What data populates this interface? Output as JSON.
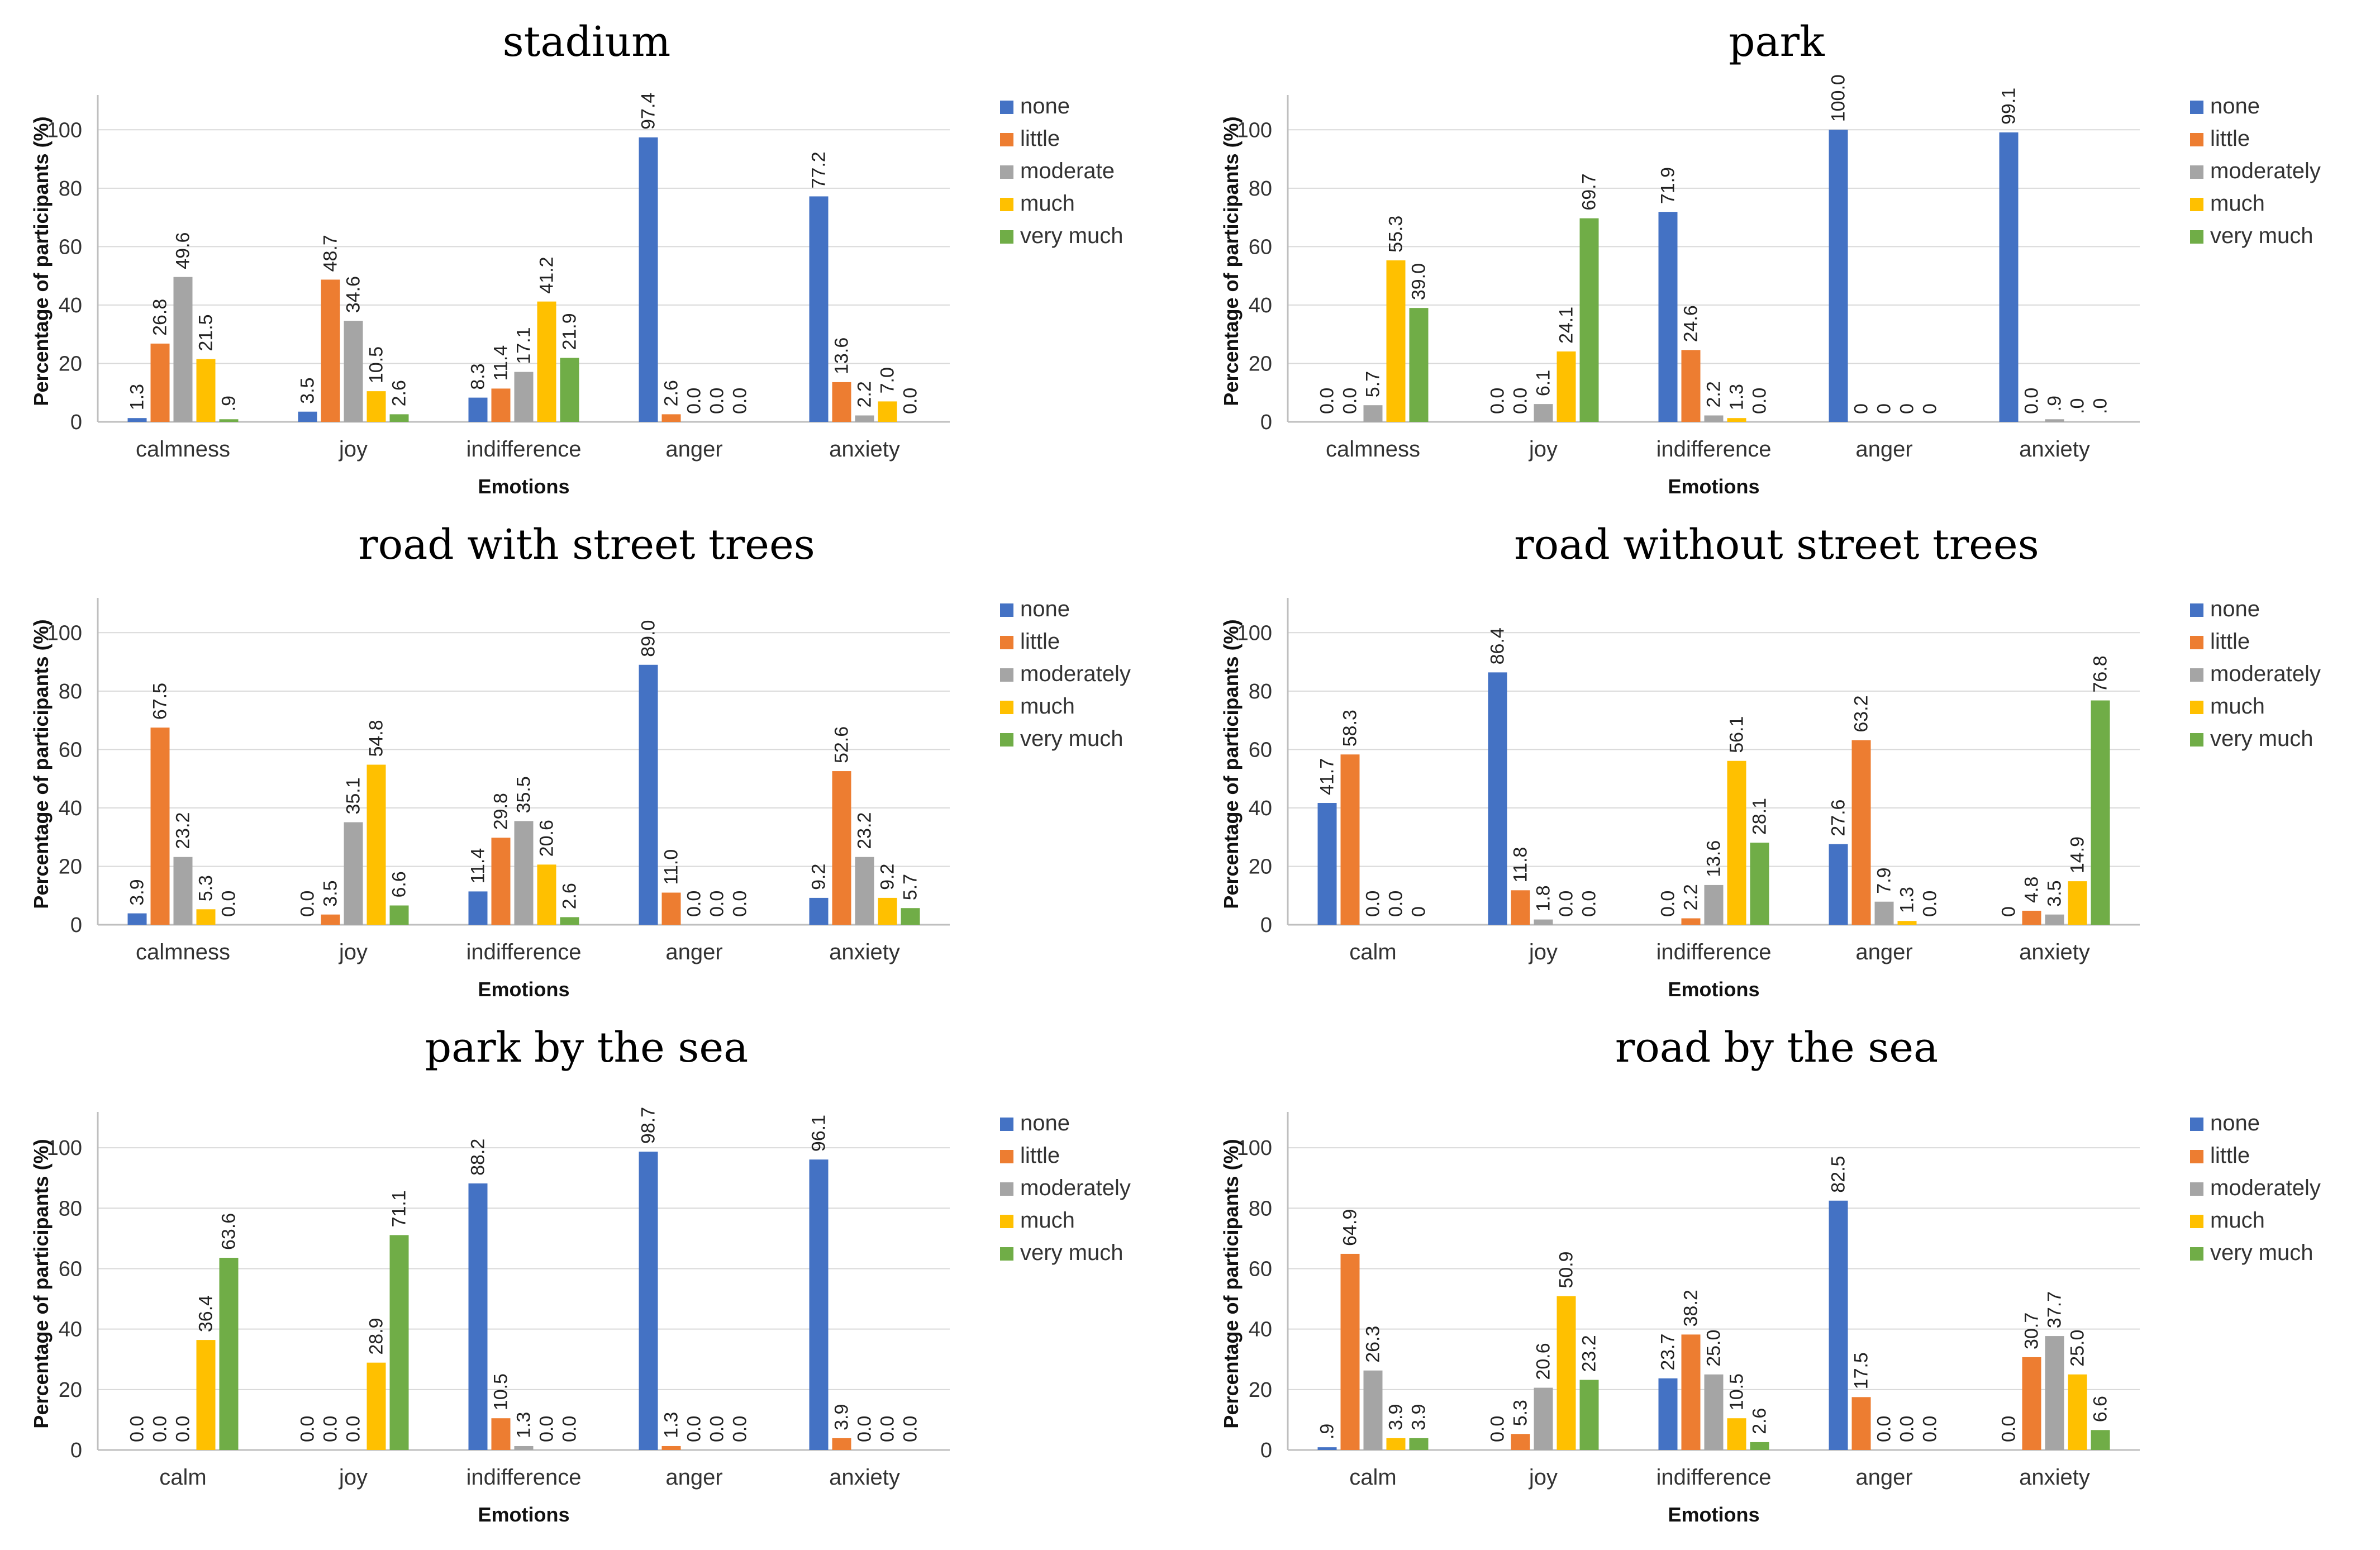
{
  "colors": {
    "none": "#4472c4",
    "little": "#ed7d31",
    "moderate": "#a5a5a5",
    "much": "#ffc000",
    "very much": "#70ad47"
  },
  "chart_data": [
    {
      "type": "bar",
      "title": "stadium",
      "xlabel": "Emotions",
      "ylabel": "Percentage of participants (%)",
      "ylim": [
        0,
        110
      ],
      "yticks": [
        "0",
        "20",
        "40",
        "60",
        "80",
        "100"
      ],
      "categories": [
        "calmness",
        "joy",
        "indifference",
        "anger",
        "anxiety"
      ],
      "series": [
        {
          "name": "none",
          "values": [
            1.3,
            3.5,
            8.3,
            97.4,
            77.2
          ],
          "labels": [
            "1.3",
            "3.5",
            "8.3",
            "97.4",
            "77.2"
          ]
        },
        {
          "name": "little",
          "values": [
            26.8,
            48.7,
            11.4,
            2.6,
            13.6
          ],
          "labels": [
            "26.8",
            "48.7",
            "11.4",
            "2.6",
            "13.6"
          ]
        },
        {
          "name": "moderate",
          "values": [
            49.6,
            34.6,
            17.1,
            0.0,
            2.2
          ],
          "labels": [
            "49.6",
            "34.6",
            "17.1",
            "0.0",
            "2.2"
          ]
        },
        {
          "name": "much",
          "values": [
            21.5,
            10.5,
            41.2,
            0.0,
            7.0
          ],
          "labels": [
            "21.5",
            "10.5",
            "41.2",
            "0.0",
            "7.0"
          ]
        },
        {
          "name": "very much",
          "values": [
            0.9,
            2.6,
            21.9,
            0.0,
            0.0
          ],
          "labels": [
            ".9",
            "2.6",
            "21.9",
            "0.0",
            "0.0"
          ]
        }
      ]
    },
    {
      "type": "bar",
      "title": "park",
      "xlabel": "Emotions",
      "ylabel": "Percentage of participants (%)",
      "ylim": [
        0,
        110
      ],
      "yticks": [
        "0",
        "20",
        "40",
        "60",
        "80",
        "100"
      ],
      "categories": [
        "calmness",
        "joy",
        "indifference",
        "anger",
        "anxiety"
      ],
      "series": [
        {
          "name": "none",
          "values": [
            0.0,
            0.0,
            71.9,
            100.0,
            99.1
          ],
          "labels": [
            "0.0",
            "0.0",
            "71.9",
            "100.0",
            "99.1"
          ]
        },
        {
          "name": "little",
          "values": [
            0.0,
            0.0,
            24.6,
            0,
            0.0
          ],
          "labels": [
            "0.0",
            "0.0",
            "24.6",
            "0",
            "0.0"
          ]
        },
        {
          "name": "moderately",
          "values": [
            5.7,
            6.1,
            2.2,
            0,
            0.9
          ],
          "labels": [
            "5.7",
            "6.1",
            "2.2",
            "0",
            ".9"
          ]
        },
        {
          "name": "much",
          "values": [
            55.3,
            24.1,
            1.3,
            0,
            0.0
          ],
          "labels": [
            "55.3",
            "24.1",
            "1.3",
            "0",
            ".0"
          ]
        },
        {
          "name": "very much",
          "values": [
            39.0,
            69.7,
            0.0,
            0,
            0.0
          ],
          "labels": [
            "39.0",
            "69.7",
            "0.0",
            "0",
            ".0"
          ]
        }
      ]
    },
    {
      "type": "bar",
      "title": "road with street trees",
      "xlabel": "Emotions",
      "ylabel": "Percentage of participants (%)",
      "ylim": [
        0,
        110
      ],
      "yticks": [
        "0",
        "20",
        "40",
        "60",
        "80",
        "100"
      ],
      "categories": [
        "calmness",
        "joy",
        "indifference",
        "anger",
        "anxiety"
      ],
      "series": [
        {
          "name": "none",
          "values": [
            3.9,
            0.0,
            11.4,
            89.0,
            9.2
          ],
          "labels": [
            "3.9",
            "0.0",
            "11.4",
            "89.0",
            "9.2"
          ]
        },
        {
          "name": "little",
          "values": [
            67.5,
            3.5,
            29.8,
            11.0,
            52.6
          ],
          "labels": [
            "67.5",
            "3.5",
            "29.8",
            "11.0",
            "52.6"
          ]
        },
        {
          "name": "moderately",
          "values": [
            23.2,
            35.1,
            35.5,
            0.0,
            23.2
          ],
          "labels": [
            "23.2",
            "35.1",
            "35.5",
            "0.0",
            "23.2"
          ]
        },
        {
          "name": "much",
          "values": [
            5.3,
            54.8,
            20.6,
            0.0,
            9.2
          ],
          "labels": [
            "5.3",
            "54.8",
            "20.6",
            "0.0",
            "9.2"
          ]
        },
        {
          "name": "very much",
          "values": [
            0.0,
            6.6,
            2.6,
            0.0,
            5.7
          ],
          "labels": [
            "0.0",
            "6.6",
            "2.6",
            "0.0",
            "5.7"
          ]
        }
      ]
    },
    {
      "type": "bar",
      "title": "road without street trees",
      "xlabel": "Emotions",
      "ylabel": "Percentage of participants (%)",
      "ylim": [
        0,
        110
      ],
      "yticks": [
        "0",
        "20",
        "40",
        "60",
        "80",
        "100"
      ],
      "categories": [
        "calm",
        "joy",
        "indifference",
        "anger",
        "anxiety"
      ],
      "series": [
        {
          "name": "none",
          "values": [
            41.7,
            86.4,
            0.0,
            27.6,
            0
          ],
          "labels": [
            "41.7",
            "86.4",
            "0.0",
            "27.6",
            "0"
          ]
        },
        {
          "name": "little",
          "values": [
            58.3,
            11.8,
            2.2,
            63.2,
            4.8
          ],
          "labels": [
            "58.3",
            "11.8",
            "2.2",
            "63.2",
            "4.8"
          ]
        },
        {
          "name": "moderately",
          "values": [
            0.0,
            1.8,
            13.6,
            7.9,
            3.5
          ],
          "labels": [
            "0.0",
            "1.8",
            "13.6",
            "7.9",
            "3.5"
          ]
        },
        {
          "name": "much",
          "values": [
            0.0,
            0.0,
            56.1,
            1.3,
            14.9
          ],
          "labels": [
            "0.0",
            "0.0",
            "56.1",
            "1.3",
            "14.9"
          ]
        },
        {
          "name": "very much",
          "values": [
            0,
            0.0,
            28.1,
            0.0,
            76.8
          ],
          "labels": [
            "0",
            "0.0",
            "28.1",
            "0.0",
            "76.8"
          ]
        }
      ]
    },
    {
      "type": "bar",
      "title": "park by the sea",
      "xlabel": "Emotions",
      "ylabel": "Percentage of participants (%)",
      "ylim": [
        0,
        110
      ],
      "yticks": [
        "0",
        "20",
        "40",
        "60",
        "80",
        "100"
      ],
      "categories": [
        "calm",
        "joy",
        "indifference",
        "anger",
        "anxiety"
      ],
      "series": [
        {
          "name": "none",
          "values": [
            0.0,
            0.0,
            88.2,
            98.7,
            96.1
          ],
          "labels": [
            "0.0",
            "0.0",
            "88.2",
            "98.7",
            "96.1"
          ]
        },
        {
          "name": "little",
          "values": [
            0.0,
            0.0,
            10.5,
            1.3,
            3.9
          ],
          "labels": [
            "0.0",
            "0.0",
            "10.5",
            "1.3",
            "3.9"
          ]
        },
        {
          "name": "moderately",
          "values": [
            0.0,
            0.0,
            1.3,
            0.0,
            0.0
          ],
          "labels": [
            "0.0",
            "0.0",
            "1.3",
            "0.0",
            "0.0"
          ]
        },
        {
          "name": "much",
          "values": [
            36.4,
            28.9,
            0.0,
            0.0,
            0.0
          ],
          "labels": [
            "36.4",
            "28.9",
            "0.0",
            "0.0",
            "0.0"
          ]
        },
        {
          "name": "very much",
          "values": [
            63.6,
            71.1,
            0.0,
            0.0,
            0.0
          ],
          "labels": [
            "63.6",
            "71.1",
            "0.0",
            "0.0",
            "0.0"
          ]
        }
      ]
    },
    {
      "type": "bar",
      "title": "road by the sea",
      "xlabel": "Emotions",
      "ylabel": "Percentage of participants (%)",
      "ylim": [
        0,
        110
      ],
      "yticks": [
        "0",
        "20",
        "40",
        "60",
        "80",
        "100"
      ],
      "categories": [
        "calm",
        "joy",
        "indifference",
        "anger",
        "anxiety"
      ],
      "series": [
        {
          "name": "none",
          "values": [
            0.9,
            0.0,
            23.7,
            82.5,
            0.0
          ],
          "labels": [
            ".9",
            "0.0",
            "23.7",
            "82.5",
            "0.0"
          ]
        },
        {
          "name": "little",
          "values": [
            64.9,
            5.3,
            38.2,
            17.5,
            30.7
          ],
          "labels": [
            "64.9",
            "5.3",
            "38.2",
            "17.5",
            "30.7"
          ]
        },
        {
          "name": "moderately",
          "values": [
            26.3,
            20.6,
            25.0,
            0.0,
            37.7
          ],
          "labels": [
            "26.3",
            "20.6",
            "25.0",
            "0.0",
            "37.7"
          ]
        },
        {
          "name": "much",
          "values": [
            3.9,
            50.9,
            10.5,
            0.0,
            25.0
          ],
          "labels": [
            "3.9",
            "50.9",
            "10.5",
            "0.0",
            "25.0"
          ]
        },
        {
          "name": "very much",
          "values": [
            3.9,
            23.2,
            2.6,
            0.0,
            6.6
          ],
          "labels": [
            "3.9",
            "23.2",
            "2.6",
            "0.0",
            "6.6"
          ]
        }
      ]
    }
  ]
}
